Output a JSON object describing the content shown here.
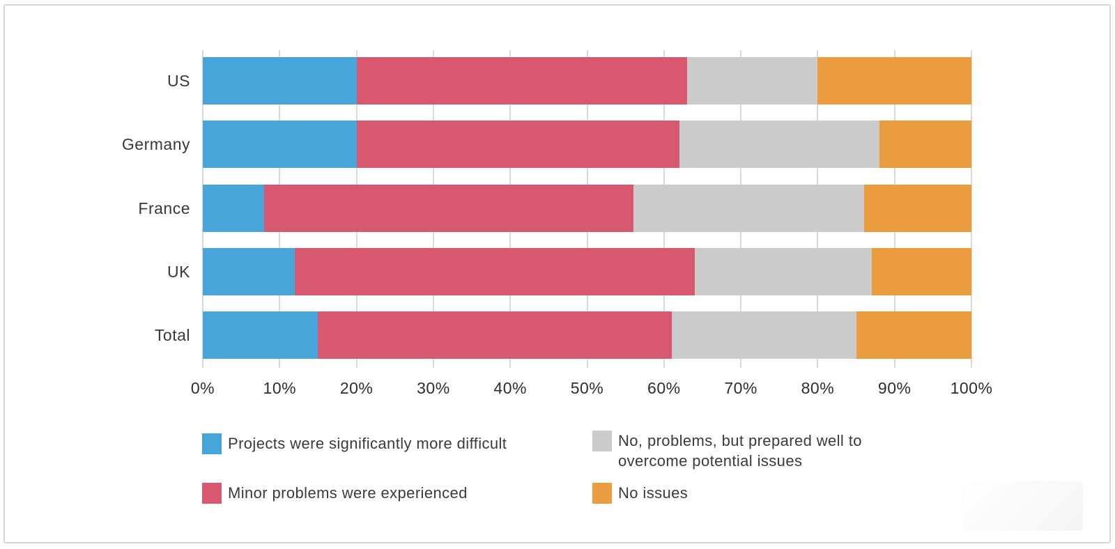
{
  "page": {
    "background_color": "#ffffff",
    "card_border_color": "#d6d6d6"
  },
  "chart_data": {
    "type": "bar",
    "orientation": "horizontal",
    "stacked": true,
    "title": "",
    "categories": [
      "US",
      "Germany",
      "France",
      "UK",
      "Total"
    ],
    "series": [
      {
        "name": "Projects were significantly more difficult",
        "color": "#47A5DA",
        "values": [
          20,
          20,
          8,
          12,
          15
        ]
      },
      {
        "name": "Minor problems were experienced",
        "color": "#D8586F",
        "values": [
          43,
          42,
          48,
          52,
          46
        ]
      },
      {
        "name": "No, problems, but prepared well to overcome potential issues",
        "color": "#CBCBCB",
        "values": [
          17,
          26,
          30,
          23,
          24
        ]
      },
      {
        "name": "No issues",
        "color": "#EB9C3F",
        "values": [
          20,
          12,
          14,
          13,
          15
        ]
      }
    ],
    "x_axis": {
      "min": 0,
      "max": 100,
      "tick_labels": [
        "0%",
        "10%",
        "20%",
        "30%",
        "40%",
        "50%",
        "60%",
        "70%",
        "80%",
        "90%",
        "100%"
      ]
    },
    "grid": "vertical gridlines at every 10%",
    "gridline_color": "#d9d9d9",
    "legend_position": "bottom, two columns"
  },
  "legend": {
    "column_assignment": [
      0,
      0,
      1,
      1
    ]
  }
}
